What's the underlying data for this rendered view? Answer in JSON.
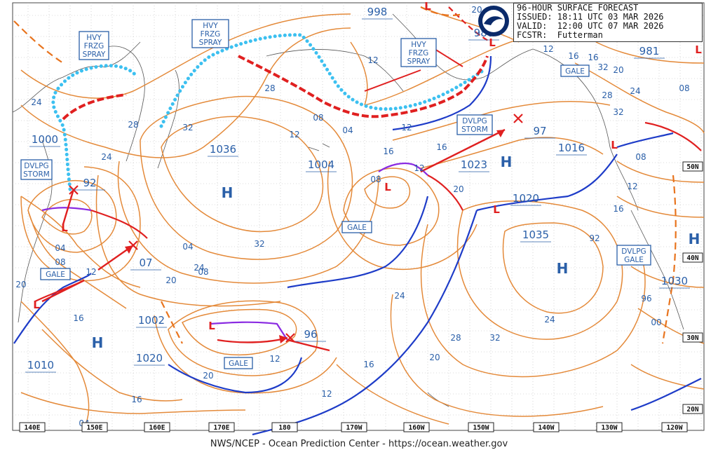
{
  "header": {
    "line1": "96-HOUR SURFACE FORECAST",
    "line2": "ISSUED: 18:11 UTC 03 MAR 2026",
    "line3": "VALID:  12:00 UTC 07 MAR 2026",
    "line4": "FCSTR:  Futterman"
  },
  "footer": "NWS/NCEP - Ocean Prediction Center - https://ocean.weather.gov",
  "logo": "noaa-logo",
  "longitude_labels": [
    "140E",
    "150E",
    "160E",
    "170E",
    "180",
    "170W",
    "160W",
    "150W",
    "140W",
    "130W",
    "120W"
  ],
  "latitude_labels": [
    "50N",
    "40N",
    "30N",
    "20N"
  ],
  "warnings": [
    {
      "lines": [
        "HVY",
        "FRZG",
        "SPRAY"
      ]
    },
    {
      "lines": [
        "HVY",
        "FRZG",
        "SPRAY"
      ]
    },
    {
      "lines": [
        "HVY",
        "FRZG",
        "SPRAY"
      ]
    },
    {
      "lines": [
        "DVLPG",
        "STORM"
      ]
    },
    {
      "lines": [
        "DVLPG",
        "STORM"
      ]
    },
    {
      "lines": [
        "GALE"
      ]
    },
    {
      "lines": [
        "GALE"
      ]
    },
    {
      "lines": [
        "GALE"
      ]
    },
    {
      "lines": [
        "GALE"
      ]
    },
    {
      "lines": [
        "DVLPG",
        "GALE"
      ]
    }
  ],
  "pressures": [
    "998",
    "988",
    "981",
    "1000",
    "92",
    "1036",
    "1004",
    "1023",
    "97",
    "1016",
    "1020",
    "1035",
    "07",
    "1002",
    "1020",
    "96",
    "1010",
    "1030"
  ],
  "highs": [
    "H",
    "H",
    "H",
    "H",
    "H"
  ],
  "lows": [
    "L",
    "L",
    "L",
    "L",
    "L",
    "L",
    "L",
    "L",
    "L"
  ],
  "isobar_labels": [
    "24",
    "28",
    "32",
    "28",
    "32",
    "24",
    "20",
    "16",
    "24",
    "20",
    "12",
    "08",
    "04",
    "08",
    "12",
    "16",
    "20",
    "24",
    "28",
    "32",
    "24",
    "20",
    "16",
    "12",
    "20",
    "16",
    "12",
    "08",
    "04",
    "12",
    "16",
    "20",
    "24",
    "28",
    "32",
    "08",
    "12",
    "16",
    "92",
    "96",
    "00",
    "04",
    "08",
    "12",
    "16",
    "20",
    "24",
    "28",
    "32",
    "08",
    "04",
    "08",
    "12",
    "16",
    "12"
  ],
  "colors": {
    "isobar": "#e48a3a",
    "cold_front": "#1e3cc8",
    "warm_front": "#e02020",
    "occluded": "#8a2be2",
    "ice": "#3cc0f0",
    "text": "#2a5fa8"
  }
}
